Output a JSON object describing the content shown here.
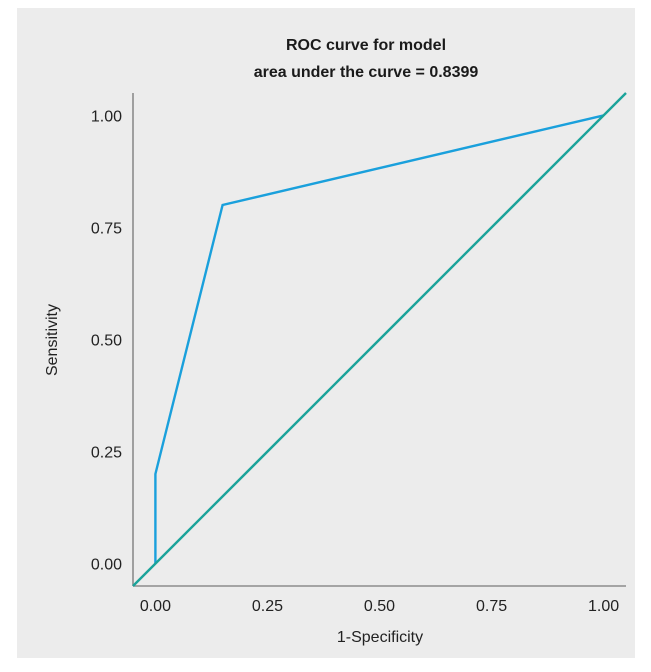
{
  "chart_data": {
    "type": "line",
    "title": [
      "ROC curve for model",
      "area under the curve = 0.8399"
    ],
    "xlabel": "1-Specificity",
    "ylabel": "Sensitivity",
    "xlim": [
      -0.05,
      1.05
    ],
    "ylim": [
      -0.05,
      1.05
    ],
    "xticks": [
      "0.00",
      "0.25",
      "0.50",
      "0.75",
      "1.00"
    ],
    "yticks": [
      "0.00",
      "0.25",
      "0.50",
      "0.75",
      "1.00"
    ],
    "grid": false,
    "series": [
      {
        "color": "#1aa0dc",
        "x": [
          0.0,
          0.0,
          0.15,
          1.0
        ],
        "y": [
          0.0,
          0.2,
          0.8,
          1.0
        ]
      },
      {
        "color": "#1aa39a",
        "x": [
          -0.05,
          1.05
        ],
        "y": [
          -0.05,
          1.05
        ]
      }
    ]
  }
}
